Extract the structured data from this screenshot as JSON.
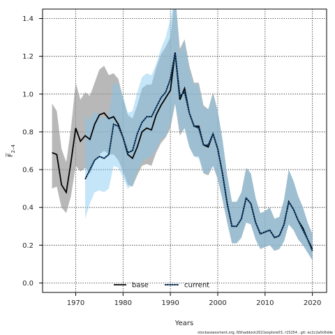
{
  "chart_data": {
    "type": "line",
    "title": "",
    "xlabel": "Years",
    "ylabel": "F̅ 2–4",
    "ylabel_main": "F̅",
    "ylabel_sub": "2–4",
    "xlim": [
      1963,
      2023
    ],
    "ylim": [
      -0.05,
      1.45
    ],
    "xticks": [
      1970,
      1980,
      1990,
      2000,
      2010,
      2020
    ],
    "yticks": [
      0.0,
      0.2,
      0.4,
      0.6,
      0.8,
      1.0,
      1.2,
      1.4
    ],
    "grid": true,
    "legend_position": "bottom-center",
    "footnote": "stockassessment.org, NShaddock2021explore03, r15254 ,  git: ec2c2a0c6dde",
    "series": [
      {
        "name": "base",
        "style": "solid",
        "color": "#000000",
        "band_color": "#9a9a9a",
        "x": [
          1965,
          1966,
          1967,
          1968,
          1969,
          1970,
          1971,
          1972,
          1973,
          1974,
          1975,
          1976,
          1977,
          1978,
          1979,
          1980,
          1981,
          1982,
          1983,
          1984,
          1985,
          1986,
          1987,
          1988,
          1989,
          1990,
          1991,
          1992,
          1993,
          1994,
          1995,
          1996,
          1997,
          1998,
          1999,
          2000,
          2001,
          2002,
          2003,
          2004,
          2005,
          2006,
          2007,
          2008,
          2009,
          2010,
          2011,
          2012,
          2013,
          2014,
          2015,
          2016,
          2017,
          2018,
          2019,
          2020
        ],
        "values": [
          0.69,
          0.68,
          0.52,
          0.48,
          0.64,
          0.82,
          0.75,
          0.78,
          0.76,
          0.84,
          0.89,
          0.9,
          0.87,
          0.88,
          0.84,
          0.77,
          0.68,
          0.66,
          0.72,
          0.8,
          0.82,
          0.81,
          0.89,
          0.94,
          0.98,
          1.02,
          1.22,
          0.97,
          1.03,
          0.9,
          0.83,
          0.83,
          0.73,
          0.72,
          0.79,
          0.71,
          0.58,
          0.42,
          0.3,
          0.3,
          0.34,
          0.45,
          0.42,
          0.32,
          0.26,
          0.27,
          0.28,
          0.24,
          0.25,
          0.31,
          0.43,
          0.39,
          0.33,
          0.29,
          0.23,
          0.18
        ],
        "lower": [
          0.5,
          0.51,
          0.4,
          0.37,
          0.46,
          0.62,
          0.59,
          0.61,
          0.58,
          0.64,
          0.68,
          0.7,
          0.68,
          0.68,
          0.65,
          0.59,
          0.52,
          0.51,
          0.57,
          0.62,
          0.63,
          0.62,
          0.69,
          0.74,
          0.77,
          0.82,
          0.95,
          0.78,
          0.82,
          0.72,
          0.67,
          0.67,
          0.58,
          0.57,
          0.62,
          0.55,
          0.44,
          0.32,
          0.21,
          0.21,
          0.24,
          0.32,
          0.31,
          0.23,
          0.18,
          0.19,
          0.2,
          0.17,
          0.18,
          0.22,
          0.31,
          0.28,
          0.23,
          0.2,
          0.16,
          0.12
        ],
        "upper": [
          0.95,
          0.91,
          0.71,
          0.64,
          0.82,
          1.06,
          0.97,
          1.01,
          0.99,
          1.06,
          1.13,
          1.15,
          1.1,
          1.11,
          1.08,
          0.98,
          0.89,
          0.87,
          0.94,
          1.03,
          1.05,
          1.05,
          1.14,
          1.21,
          1.25,
          1.3,
          1.53,
          1.24,
          1.29,
          1.15,
          1.06,
          1.06,
          0.94,
          0.92,
          1.01,
          0.91,
          0.76,
          0.57,
          0.43,
          0.43,
          0.48,
          0.61,
          0.58,
          0.45,
          0.37,
          0.38,
          0.4,
          0.34,
          0.35,
          0.44,
          0.6,
          0.54,
          0.46,
          0.4,
          0.32,
          0.26
        ]
      },
      {
        "name": "current",
        "style": "dotted",
        "color": "#1a5a9a",
        "band_color": "#7ec8f0",
        "x": [
          1972,
          1973,
          1974,
          1975,
          1976,
          1977,
          1978,
          1979,
          1980,
          1981,
          1982,
          1983,
          1984,
          1985,
          1986,
          1987,
          1988,
          1989,
          1990,
          1991,
          1992,
          1993,
          1994,
          1995,
          1996,
          1997,
          1998,
          1999,
          2000,
          2001,
          2002,
          2003,
          2004,
          2005,
          2006,
          2007,
          2008,
          2009,
          2010,
          2011,
          2012,
          2013,
          2014,
          2015,
          2016,
          2017,
          2018,
          2019,
          2020
        ],
        "values": [
          0.55,
          0.6,
          0.65,
          0.67,
          0.66,
          0.68,
          0.84,
          0.83,
          0.77,
          0.69,
          0.7,
          0.79,
          0.85,
          0.88,
          0.88,
          0.93,
          0.98,
          1.01,
          1.08,
          1.22,
          0.99,
          1.01,
          0.9,
          0.83,
          0.82,
          0.73,
          0.73,
          0.79,
          0.71,
          0.58,
          0.42,
          0.3,
          0.3,
          0.34,
          0.45,
          0.42,
          0.32,
          0.26,
          0.27,
          0.28,
          0.24,
          0.25,
          0.31,
          0.43,
          0.39,
          0.33,
          0.28,
          0.23,
          0.17
        ],
        "lower": [
          0.34,
          0.42,
          0.48,
          0.49,
          0.48,
          0.5,
          0.62,
          0.61,
          0.56,
          0.5,
          0.52,
          0.59,
          0.64,
          0.66,
          0.67,
          0.71,
          0.76,
          0.78,
          0.84,
          0.95,
          0.8,
          0.82,
          0.72,
          0.67,
          0.66,
          0.58,
          0.58,
          0.62,
          0.55,
          0.44,
          0.32,
          0.21,
          0.21,
          0.24,
          0.32,
          0.31,
          0.23,
          0.18,
          0.19,
          0.2,
          0.17,
          0.18,
          0.22,
          0.31,
          0.28,
          0.23,
          0.2,
          0.16,
          0.12
        ],
        "upper": [
          0.89,
          0.86,
          0.91,
          0.89,
          0.87,
          0.89,
          1.06,
          1.05,
          0.99,
          0.9,
          0.91,
          1.01,
          1.09,
          1.11,
          1.1,
          1.16,
          1.24,
          1.3,
          1.4,
          1.53,
          1.21,
          1.28,
          1.13,
          1.05,
          1.05,
          0.93,
          0.92,
          1.0,
          0.91,
          0.76,
          0.57,
          0.43,
          0.43,
          0.48,
          0.61,
          0.58,
          0.45,
          0.37,
          0.38,
          0.4,
          0.34,
          0.35,
          0.44,
          0.6,
          0.54,
          0.46,
          0.4,
          0.32,
          0.25
        ]
      }
    ]
  }
}
